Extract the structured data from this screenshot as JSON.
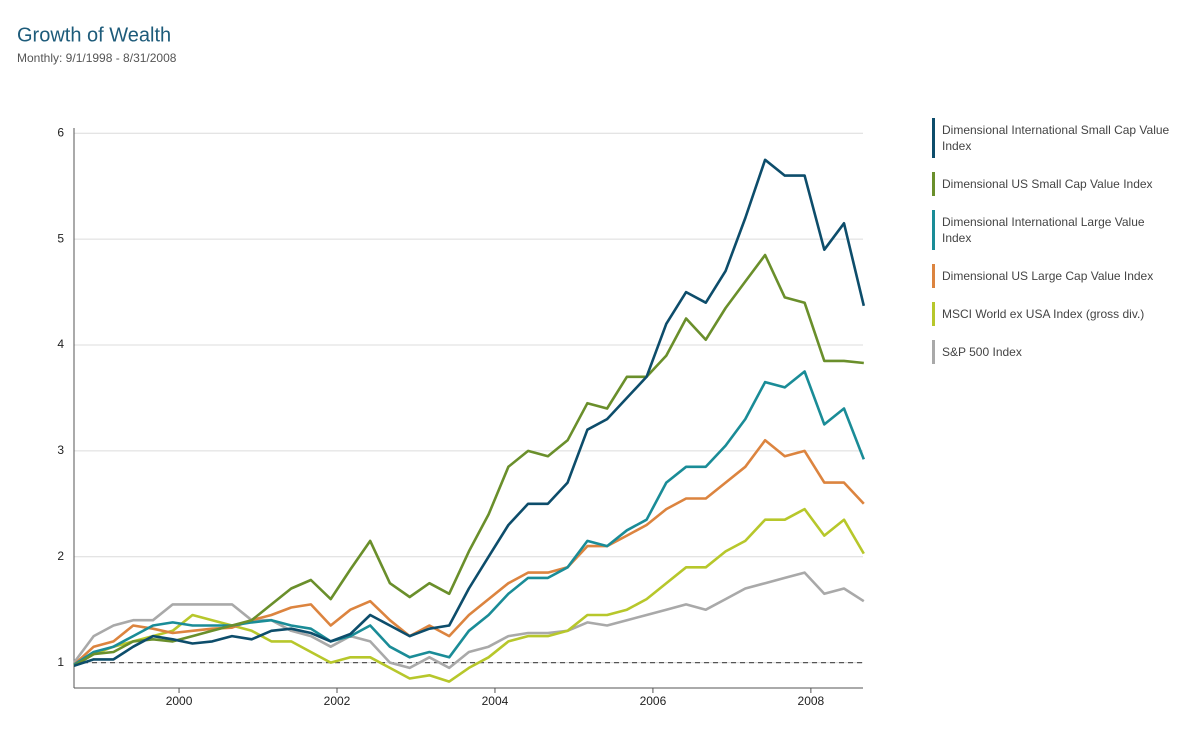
{
  "chart_data": {
    "type": "line",
    "title": "Growth of Wealth",
    "subtitle": "Monthly: 9/1/1998 - 8/31/2008",
    "x": [
      1998.67,
      1998.92,
      1999.17,
      1999.42,
      1999.67,
      1999.92,
      2000.17,
      2000.42,
      2000.67,
      2000.92,
      2001.17,
      2001.42,
      2001.67,
      2001.92,
      2002.17,
      2002.42,
      2002.67,
      2002.92,
      2003.17,
      2003.42,
      2003.67,
      2003.92,
      2004.17,
      2004.42,
      2004.67,
      2004.92,
      2005.17,
      2005.42,
      2005.67,
      2005.92,
      2006.17,
      2006.42,
      2006.67,
      2006.92,
      2007.17,
      2007.42,
      2007.67,
      2007.92,
      2008.17,
      2008.42,
      2008.67
    ],
    "series": [
      {
        "name": "Dimensional International Small Cap Value Index",
        "color": "#0d4d6b",
        "values": [
          0.97,
          1.03,
          1.03,
          1.15,
          1.25,
          1.22,
          1.18,
          1.2,
          1.25,
          1.22,
          1.3,
          1.32,
          1.28,
          1.2,
          1.27,
          1.45,
          1.35,
          1.25,
          1.32,
          1.35,
          1.7,
          2.0,
          2.3,
          2.5,
          2.5,
          2.7,
          3.2,
          3.3,
          3.5,
          3.7,
          4.2,
          4.5,
          4.4,
          4.7,
          5.2,
          5.75,
          5.6,
          5.6,
          4.9,
          5.15,
          4.37
        ]
      },
      {
        "name": "Dimensional US Small Cap Value Index",
        "color": "#6a8f2b",
        "values": [
          0.97,
          1.08,
          1.1,
          1.2,
          1.22,
          1.2,
          1.25,
          1.3,
          1.35,
          1.4,
          1.55,
          1.7,
          1.78,
          1.6,
          1.88,
          2.15,
          1.75,
          1.62,
          1.75,
          1.65,
          2.05,
          2.4,
          2.85,
          3.0,
          2.95,
          3.1,
          3.45,
          3.4,
          3.7,
          3.7,
          3.9,
          4.25,
          4.05,
          4.35,
          4.6,
          4.85,
          4.45,
          4.4,
          3.85,
          3.85,
          3.83
        ]
      },
      {
        "name": "Dimensional International Large Value Index",
        "color": "#1a8c97",
        "values": [
          0.98,
          1.1,
          1.15,
          1.25,
          1.35,
          1.38,
          1.35,
          1.35,
          1.35,
          1.38,
          1.4,
          1.35,
          1.32,
          1.2,
          1.25,
          1.35,
          1.15,
          1.05,
          1.1,
          1.05,
          1.3,
          1.45,
          1.65,
          1.8,
          1.8,
          1.9,
          2.15,
          2.1,
          2.25,
          2.35,
          2.7,
          2.85,
          2.85,
          3.05,
          3.3,
          3.65,
          3.6,
          3.75,
          3.25,
          3.4,
          2.92
        ]
      },
      {
        "name": "Dimensional US Large Cap Value Index",
        "color": "#dc843f",
        "values": [
          0.98,
          1.15,
          1.2,
          1.35,
          1.32,
          1.28,
          1.3,
          1.32,
          1.33,
          1.4,
          1.45,
          1.52,
          1.55,
          1.35,
          1.5,
          1.58,
          1.4,
          1.25,
          1.35,
          1.25,
          1.45,
          1.6,
          1.75,
          1.85,
          1.85,
          1.9,
          2.1,
          2.1,
          2.2,
          2.3,
          2.45,
          2.55,
          2.55,
          2.7,
          2.85,
          3.1,
          2.95,
          3.0,
          2.7,
          2.7,
          2.5
        ]
      },
      {
        "name": "MSCI World ex USA Index (gross div.)",
        "color": "#b7c72b",
        "values": [
          0.97,
          1.08,
          1.15,
          1.2,
          1.25,
          1.3,
          1.45,
          1.4,
          1.35,
          1.3,
          1.2,
          1.2,
          1.1,
          1.0,
          1.05,
          1.05,
          0.95,
          0.85,
          0.88,
          0.82,
          0.95,
          1.05,
          1.2,
          1.25,
          1.25,
          1.3,
          1.45,
          1.45,
          1.5,
          1.6,
          1.75,
          1.9,
          1.9,
          2.05,
          2.15,
          2.35,
          2.35,
          2.45,
          2.2,
          2.35,
          2.03
        ]
      },
      {
        "name": "S&P 500 Index",
        "color": "#a9a9a9",
        "values": [
          1.0,
          1.25,
          1.35,
          1.4,
          1.4,
          1.55,
          1.55,
          1.55,
          1.55,
          1.4,
          1.4,
          1.3,
          1.25,
          1.15,
          1.25,
          1.2,
          1.0,
          0.95,
          1.05,
          0.95,
          1.1,
          1.15,
          1.25,
          1.28,
          1.28,
          1.3,
          1.38,
          1.35,
          1.4,
          1.45,
          1.5,
          1.55,
          1.5,
          1.6,
          1.7,
          1.75,
          1.8,
          1.85,
          1.65,
          1.7,
          1.58
        ]
      }
    ],
    "xlim": [
      1998.67,
      2008.66
    ],
    "xticks": [
      2000,
      2002,
      2004,
      2006,
      2008
    ],
    "ylim": [
      0.76,
      6.05
    ],
    "yticks": [
      1,
      2,
      3,
      4,
      5,
      6
    ],
    "reference_line": 1,
    "grid": true,
    "legend": "right"
  }
}
